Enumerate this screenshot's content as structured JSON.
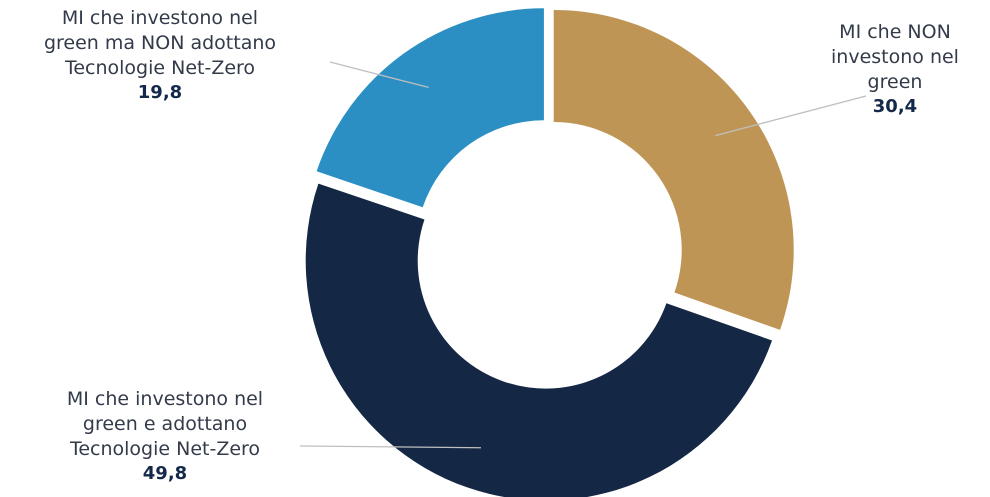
{
  "chart_data": {
    "type": "pie",
    "variant": "donut",
    "title": "",
    "categories": [
      "MI che NON\ninvestono nel\ngreen",
      "MI che investono nel\ngreen e adottano\nTecnologie Net-Zero",
      "MI che investono nel\ngreen ma NON adottano\nTecnologie Net-Zero"
    ],
    "values": [
      30.4,
      49.8,
      19.8
    ],
    "value_labels": [
      "30,4",
      "49,8",
      "19,8"
    ],
    "colors": [
      "#bf9555",
      "#142744",
      "#2b8fc4"
    ],
    "start_angle": "top",
    "direction": "clockwise",
    "legend": "none",
    "labels_with_leader_lines": true
  }
}
